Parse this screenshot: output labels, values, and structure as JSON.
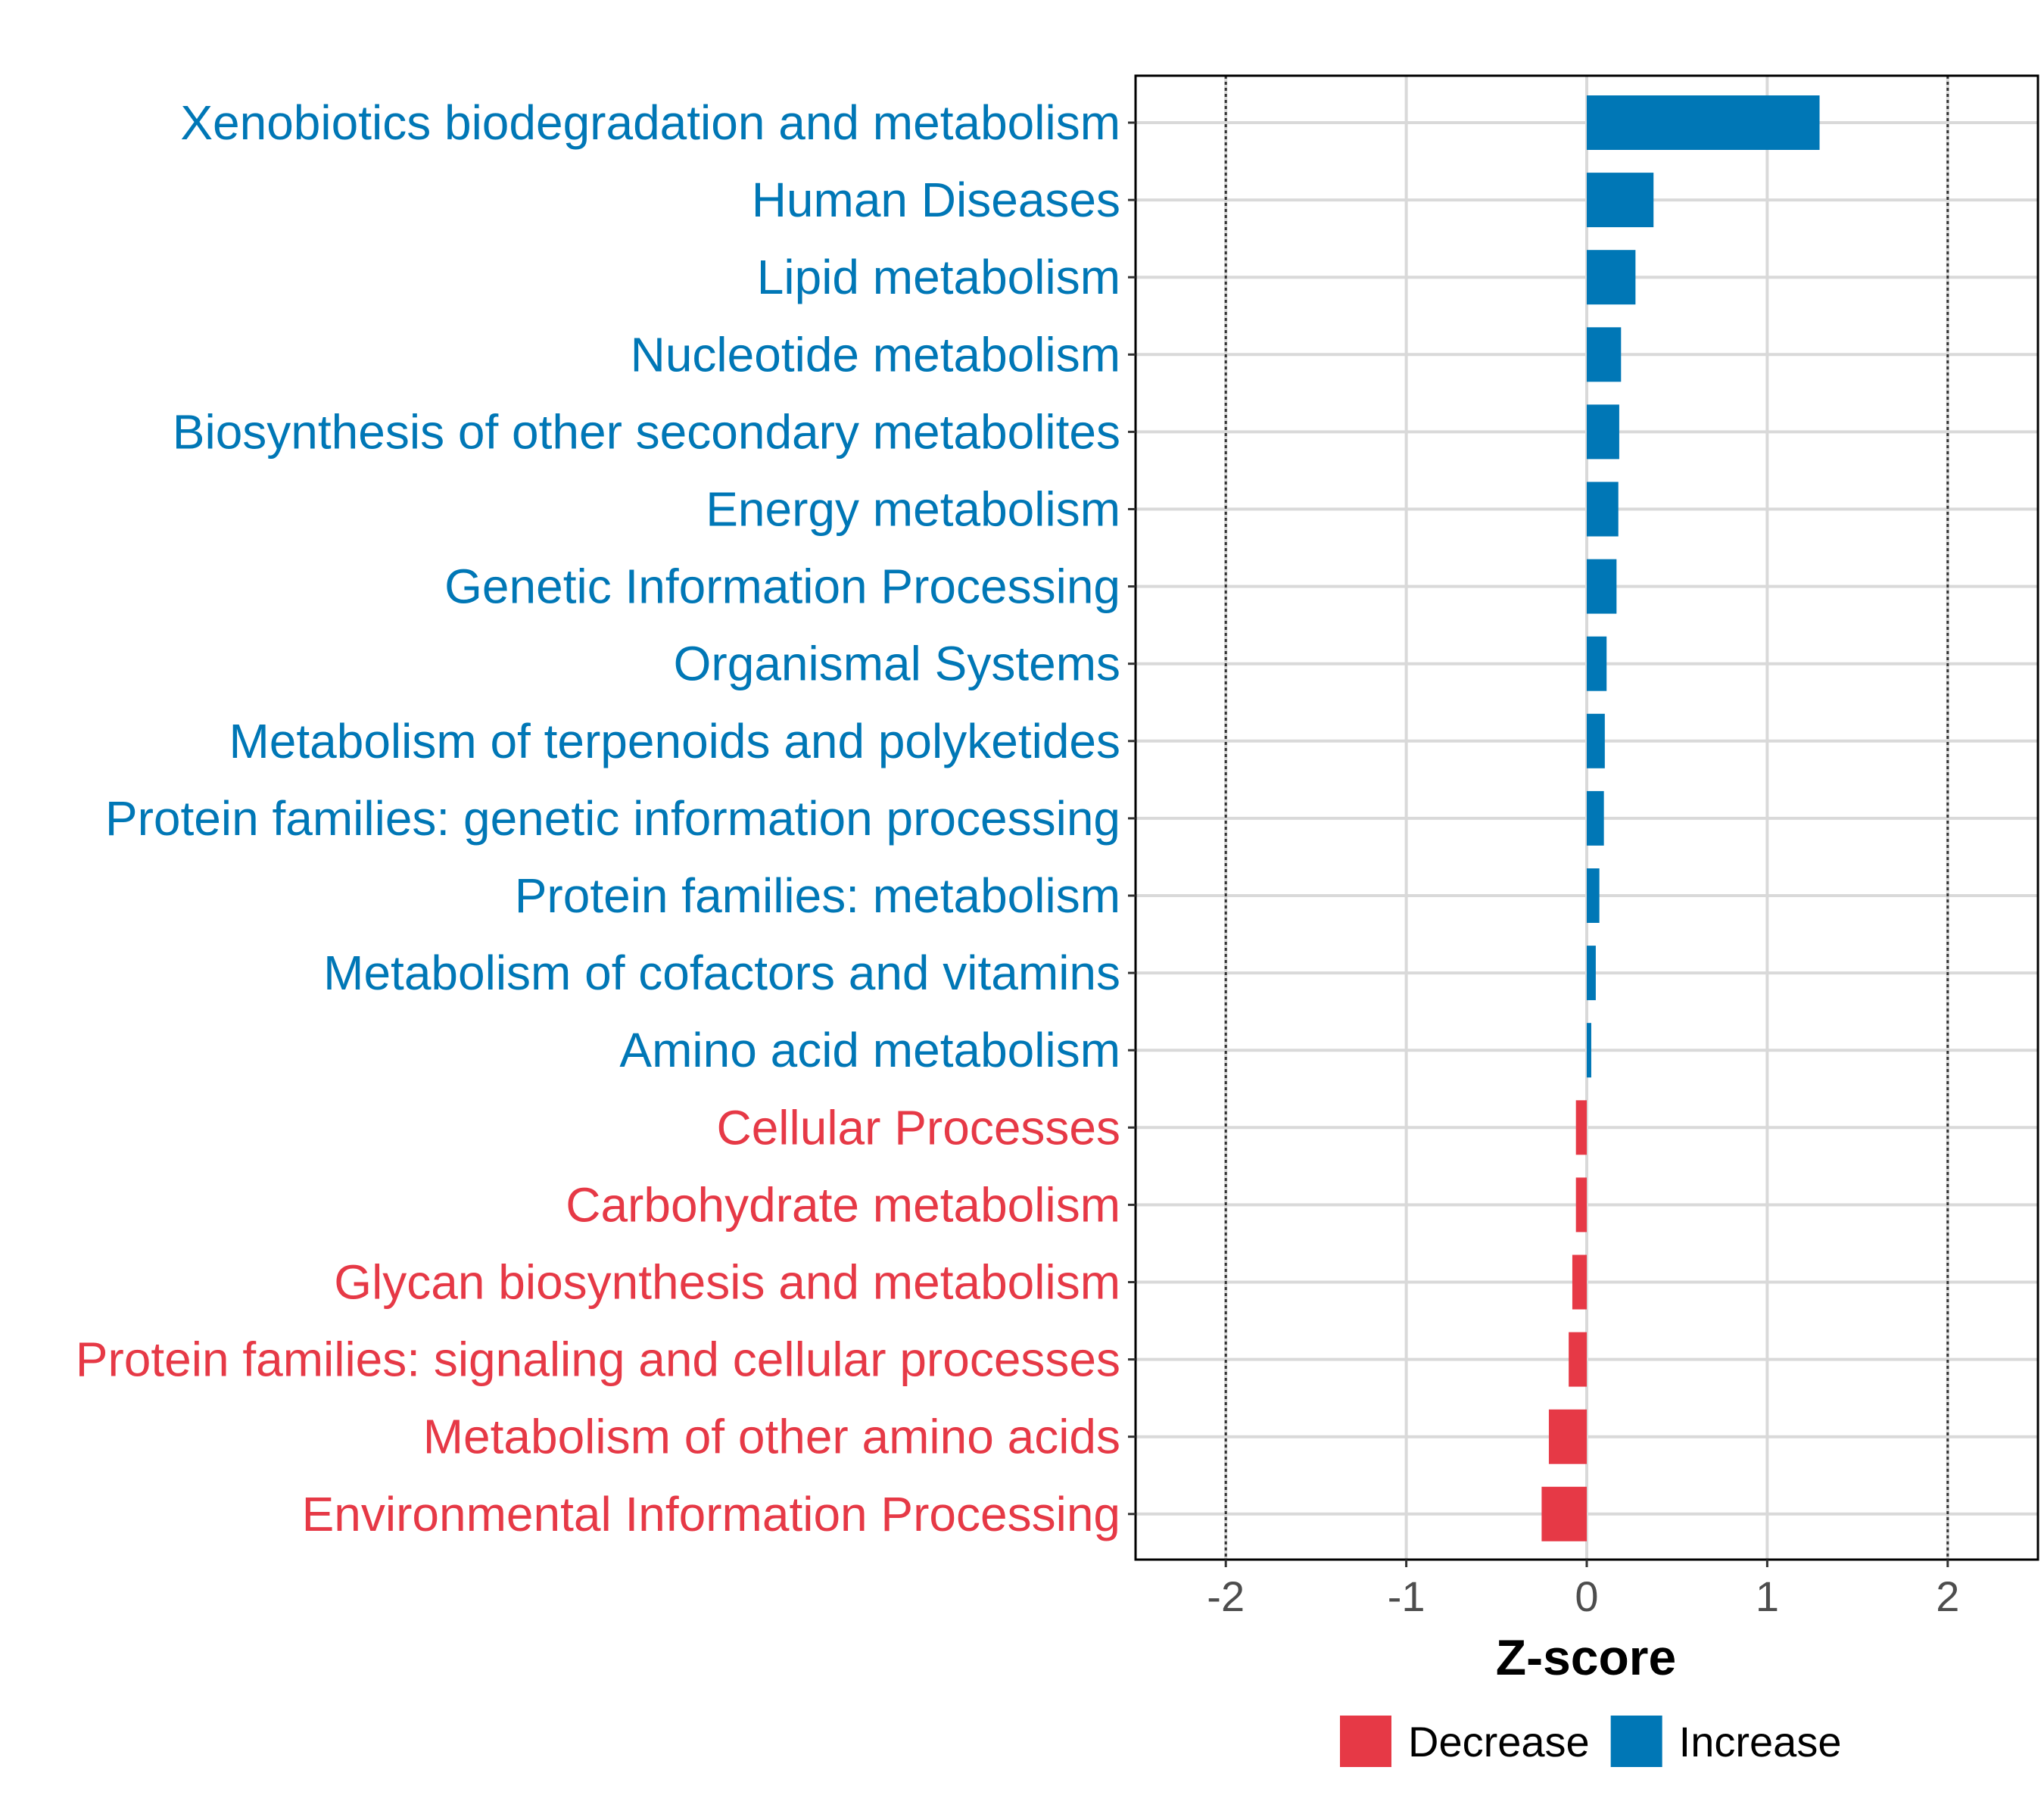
{
  "chart_data": {
    "type": "bar",
    "orientation": "horizontal",
    "title": "",
    "xlabel": "Z-score",
    "ylabel": "",
    "xlim": [
      -2.5,
      2.5
    ],
    "x_ticks": [
      -2,
      -1,
      0,
      1,
      2
    ],
    "x_tick_labels": [
      "-2",
      "-1",
      "0",
      "1",
      "2"
    ],
    "reference_lines": [
      -2,
      2
    ],
    "grid": true,
    "categories": [
      "Xenobiotics biodegradation and metabolism",
      "Human Diseases",
      "Lipid metabolism",
      "Nucleotide metabolism",
      "Biosynthesis of other secondary metabolites",
      "Energy metabolism",
      "Genetic Information Processing",
      "Organismal Systems",
      "Metabolism of terpenoids and polyketides",
      "Protein families: genetic information processing",
      "Protein families: metabolism",
      "Metabolism of cofactors and vitamins",
      "Amino acid metabolism",
      "Cellular Processes",
      "Carbohydrate metabolism",
      "Glycan biosynthesis and metabolism",
      "Protein families: signaling and cellular processes",
      "Metabolism of other amino acids",
      "Environmental Information Processing"
    ],
    "values": [
      1.29,
      0.37,
      0.27,
      0.19,
      0.18,
      0.175,
      0.165,
      0.11,
      0.1,
      0.095,
      0.07,
      0.05,
      0.025,
      -0.06,
      -0.06,
      -0.08,
      -0.1,
      -0.21,
      -0.25
    ],
    "groups": [
      "Increase",
      "Increase",
      "Increase",
      "Increase",
      "Increase",
      "Increase",
      "Increase",
      "Increase",
      "Increase",
      "Increase",
      "Increase",
      "Increase",
      "Increase",
      "Decrease",
      "Decrease",
      "Decrease",
      "Decrease",
      "Decrease",
      "Decrease"
    ],
    "legend": {
      "placement": "bottom",
      "entries": [
        {
          "label": "Decrease",
          "color": "#E63946"
        },
        {
          "label": "Increase",
          "color": "#0077B6"
        }
      ]
    },
    "colors": {
      "Increase": "#0077B6",
      "Decrease": "#E63946"
    }
  }
}
